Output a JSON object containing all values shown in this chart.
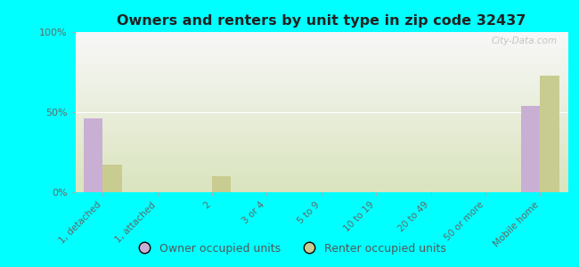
{
  "title": "Owners and renters by unit type in zip code 32437",
  "categories": [
    "1, detached",
    "1, attached",
    "2",
    "3 or 4",
    "5 to 9",
    "10 to 19",
    "20 to 49",
    "50 or more",
    "Mobile home"
  ],
  "owner_values": [
    46,
    0,
    0,
    0,
    0,
    0,
    0,
    0,
    54
  ],
  "renter_values": [
    17,
    0,
    10,
    0,
    0,
    0,
    0,
    0,
    73
  ],
  "owner_color": "#c9afd4",
  "renter_color": "#c8cc90",
  "bg_color": "#00ffff",
  "ylabel_ticks": [
    "0%",
    "50%",
    "100%"
  ],
  "ytick_vals": [
    0,
    50,
    100
  ],
  "ylim": [
    0,
    100
  ],
  "bar_width": 0.35,
  "legend_owner": "Owner occupied units",
  "legend_renter": "Renter occupied units",
  "watermark": "City-Data.com"
}
